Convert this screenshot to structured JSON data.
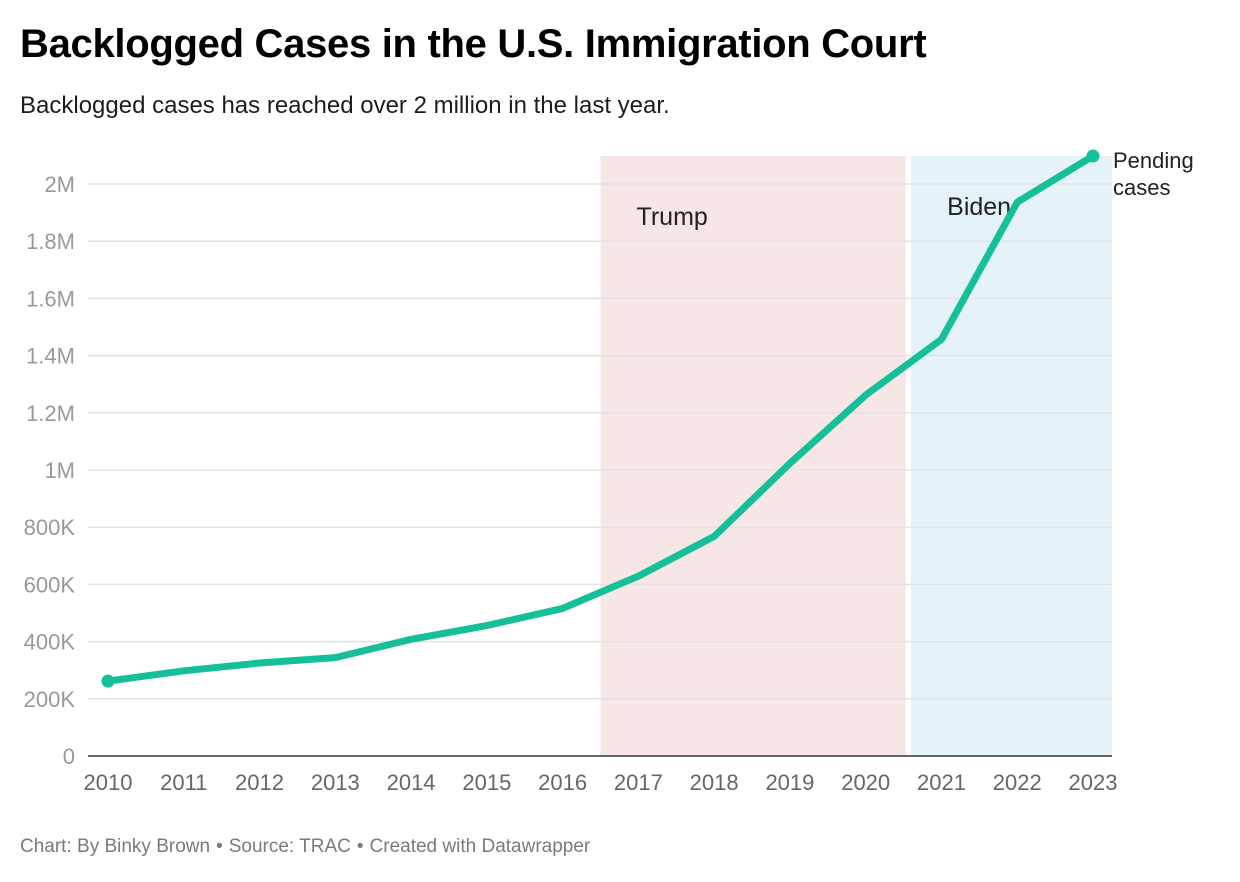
{
  "header": {
    "title": "Backlogged Cases in the U.S. Immigration Court",
    "subtitle": "Backlogged cases has reached over 2 million in the last year."
  },
  "footer": {
    "chart_by": "Chart: By Binky Brown",
    "source": "Source: TRAC",
    "created": "Created with Datawrapper",
    "separator": "•"
  },
  "colors": {
    "line": "#14bf9a",
    "trump_band": "#f6e6e5",
    "biden_band": "#e5f3f9",
    "grid": "#e3e3e3",
    "axis": "#333333"
  },
  "chart_data": {
    "type": "line",
    "title": "Backlogged Cases in the U.S. Immigration Court",
    "subtitle": "Backlogged cases has reached over 2 million in the last year.",
    "xlabel": "",
    "ylabel": "",
    "x": [
      2010,
      2011,
      2012,
      2013,
      2014,
      2015,
      2016,
      2017,
      2018,
      2019,
      2020,
      2021,
      2022,
      2023
    ],
    "x_ticks": [
      "2010",
      "2011",
      "2012",
      "2013",
      "2014",
      "2015",
      "2016",
      "2017",
      "2018",
      "2019",
      "2020",
      "2021",
      "2022",
      "2023"
    ],
    "xlim": [
      2010,
      2023
    ],
    "ylim": [
      0,
      2100000
    ],
    "y_ticks": [
      {
        "value": 0,
        "label": "0"
      },
      {
        "value": 200000,
        "label": "200K"
      },
      {
        "value": 400000,
        "label": "400K"
      },
      {
        "value": 600000,
        "label": "600K"
      },
      {
        "value": 800000,
        "label": "800K"
      },
      {
        "value": 1000000,
        "label": "1M"
      },
      {
        "value": 1200000,
        "label": "1.2M"
      },
      {
        "value": 1400000,
        "label": "1.4M"
      },
      {
        "value": 1600000,
        "label": "1.6M"
      },
      {
        "value": 1800000,
        "label": "1.8M"
      },
      {
        "value": 2000000,
        "label": "2M"
      }
    ],
    "grid": true,
    "series": [
      {
        "name": "Pending cases",
        "label_lines": [
          "Pending",
          "cases"
        ],
        "values": [
          262000,
          298000,
          325000,
          344000,
          408000,
          456000,
          516000,
          629000,
          768000,
          1023000,
          1262000,
          1457000,
          1936000,
          2098000
        ]
      }
    ],
    "bands": [
      {
        "label": "Trump",
        "from": 2016.5,
        "to": 2020.53,
        "color": "#f6e6e5"
      },
      {
        "label": "Biden",
        "from": 2020.6,
        "to": 2023.25,
        "color": "#e5f3f9"
      }
    ]
  }
}
